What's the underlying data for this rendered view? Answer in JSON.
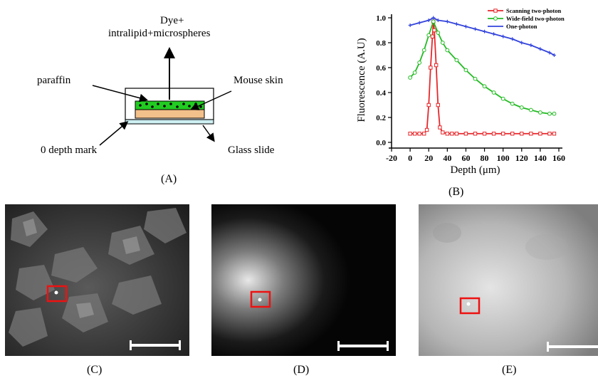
{
  "panel_a": {
    "label": "(A)",
    "dye_line1": "Dye+",
    "dye_line2": "intralipid+microspheres",
    "paraffin": "paraffin",
    "mouse_skin": "Mouse skin",
    "zero_depth": "0 depth mark",
    "glass_slide": "Glass slide",
    "colors": {
      "dye_layer": "#22cc22",
      "skin_layer": "#f2c08a",
      "glass": "#cdeff2"
    }
  },
  "panel_b": {
    "label": "(B)"
  },
  "panel_c": {
    "label": "(C)"
  },
  "panel_d": {
    "label": "(D)"
  },
  "panel_e": {
    "label": "(E)"
  },
  "chart_data": {
    "type": "line",
    "xlabel": "Depth (μm)",
    "ylabel": "Fluorescence (A.U)",
    "xlim": [
      -20,
      160
    ],
    "ylim": [
      0,
      1.0
    ],
    "xticks": [
      -20,
      0,
      20,
      40,
      60,
      80,
      100,
      120,
      140,
      160
    ],
    "yticks": [
      0.0,
      0.2,
      0.4,
      0.6,
      0.8,
      1.0
    ],
    "legend_position": "top-right",
    "series": [
      {
        "name": "Scanning two-photon",
        "color": "#e8262a",
        "marker": "square",
        "x": [
          0,
          5,
          10,
          15,
          18,
          20,
          22,
          24,
          25,
          26,
          28,
          30,
          32,
          35,
          40,
          45,
          50,
          60,
          70,
          80,
          90,
          100,
          110,
          120,
          130,
          140,
          150,
          155
        ],
        "y": [
          0.07,
          0.07,
          0.07,
          0.07,
          0.1,
          0.3,
          0.6,
          0.85,
          0.97,
          0.9,
          0.62,
          0.3,
          0.12,
          0.08,
          0.07,
          0.07,
          0.07,
          0.07,
          0.07,
          0.07,
          0.07,
          0.07,
          0.07,
          0.07,
          0.07,
          0.07,
          0.07,
          0.07
        ]
      },
      {
        "name": "Wide-field two-photon",
        "color": "#22bb22",
        "marker": "circle",
        "x": [
          0,
          5,
          10,
          15,
          20,
          25,
          30,
          35,
          40,
          50,
          60,
          70,
          80,
          90,
          100,
          110,
          120,
          130,
          140,
          150,
          155
        ],
        "y": [
          0.52,
          0.56,
          0.64,
          0.74,
          0.86,
          0.97,
          0.88,
          0.8,
          0.74,
          0.66,
          0.58,
          0.51,
          0.45,
          0.4,
          0.35,
          0.31,
          0.28,
          0.26,
          0.24,
          0.23,
          0.23
        ]
      },
      {
        "name": "One-photon",
        "color": "#3344dd",
        "marker": "plus",
        "x": [
          0,
          10,
          20,
          25,
          30,
          40,
          50,
          60,
          70,
          80,
          90,
          100,
          110,
          120,
          130,
          140,
          150,
          155
        ],
        "y": [
          0.94,
          0.96,
          0.98,
          1.0,
          0.98,
          0.97,
          0.95,
          0.93,
          0.91,
          0.89,
          0.87,
          0.85,
          0.83,
          0.8,
          0.78,
          0.75,
          0.72,
          0.7
        ]
      }
    ]
  }
}
